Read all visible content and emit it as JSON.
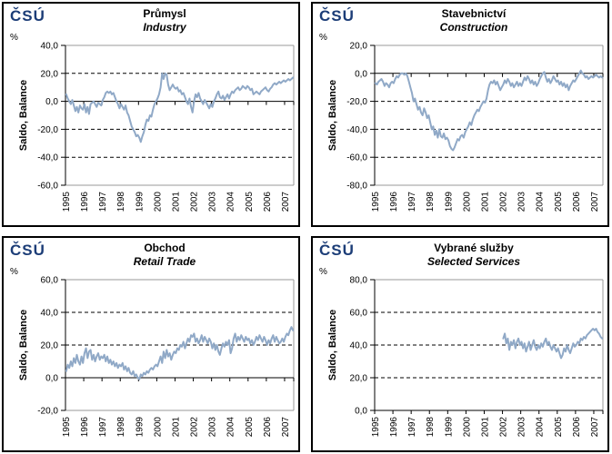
{
  "logo_text": "ČSÚ",
  "colors": {
    "line": "#90A9C7",
    "logo": "#1C3D77",
    "axis": "#000000",
    "frame": "#999999",
    "grid": "#000000"
  },
  "chart_data": [
    {
      "type": "line",
      "id": "industry",
      "title_cz": "Průmysl",
      "title_en": "Industry",
      "percent_label": "%",
      "ylabel": "Saldo, Balance",
      "ylim": [
        -60,
        40
      ],
      "ytick_values": [
        40,
        20,
        0,
        -20,
        -40,
        -60
      ],
      "ytick_labels": [
        "40,0",
        "20,0",
        "0,0",
        "-20,0",
        "-40,0",
        "-60,0"
      ],
      "zero_cross": 0,
      "grid": "horizontal dashed, solid zero axis",
      "legend": "none",
      "x_tick_labels": [
        "1995",
        "1996",
        "1997",
        "1998",
        "1999",
        "2000",
        "2001",
        "2002",
        "2003",
        "2004",
        "2005",
        "2006",
        "2007"
      ],
      "x_months_total": 150,
      "series": [
        {
          "name": "Saldo, Balance",
          "start_month_index": 0,
          "monthly_values": [
            5,
            2,
            0,
            -2,
            1,
            -3,
            -7,
            -4,
            -8,
            -3,
            -5,
            -6,
            -2,
            -8,
            -4,
            -9,
            -2,
            -1,
            0,
            -2,
            -4,
            -1,
            -2,
            -3,
            1,
            3,
            6,
            7,
            6,
            7,
            5,
            6,
            3,
            0,
            -2,
            -5,
            -2,
            -4,
            -6,
            -3,
            -8,
            -10,
            -14,
            -18,
            -20,
            -22,
            -25,
            -24,
            -26,
            -29,
            -25,
            -22,
            -17,
            -13,
            -14,
            -10,
            -11,
            -6,
            -2,
            0,
            2,
            5,
            10,
            20,
            16,
            20,
            19,
            12,
            8,
            10,
            12,
            10,
            9,
            10,
            7,
            8,
            5,
            6,
            3,
            0,
            -2,
            2,
            -4,
            -8,
            0,
            5,
            3,
            6,
            2,
            0,
            -2,
            1,
            -1,
            -3,
            -5,
            -2,
            -4,
            0,
            2,
            5,
            7,
            3,
            2,
            4,
            1,
            3,
            5,
            2,
            5,
            7,
            6,
            8,
            9,
            10,
            8,
            9,
            11,
            10,
            9,
            11,
            10,
            8,
            9,
            5,
            6,
            7,
            6,
            5,
            7,
            8,
            9,
            10,
            8,
            7,
            9,
            10,
            12,
            13,
            12,
            13,
            14,
            13,
            14,
            15,
            14,
            15,
            16,
            15,
            16,
            17
          ]
        }
      ]
    },
    {
      "type": "line",
      "id": "construction",
      "title_cz": "Stavebnictví",
      "title_en": "Construction",
      "percent_label": "%",
      "ylabel": "Saldo, Balance",
      "ylim": [
        -80,
        20
      ],
      "ytick_values": [
        20,
        0,
        -20,
        -40,
        -60,
        -80
      ],
      "ytick_labels": [
        "20,0",
        "0,0",
        "-20,0",
        "-40,0",
        "-60,0",
        "-80,0"
      ],
      "zero_cross": 0,
      "grid": "horizontal dashed, solid zero axis",
      "legend": "none",
      "x_tick_labels": [
        "1995",
        "1996",
        "1997",
        "1998",
        "1999",
        "2000",
        "2001",
        "2002",
        "2003",
        "2004",
        "2005",
        "2006",
        "2007"
      ],
      "x_months_total": 150,
      "series": [
        {
          "name": "Saldo, Balance",
          "start_month_index": 0,
          "monthly_values": [
            -7,
            -8,
            -6,
            -5,
            -4,
            -6,
            -9,
            -7,
            -8,
            -10,
            -7,
            -6,
            -7,
            -4,
            -2,
            -3,
            -1,
            0,
            0,
            -1,
            0,
            -2,
            -6,
            -10,
            -14,
            -20,
            -18,
            -22,
            -26,
            -24,
            -28,
            -30,
            -25,
            -28,
            -32,
            -30,
            -35,
            -40,
            -38,
            -44,
            -41,
            -46,
            -40,
            -45,
            -46,
            -43,
            -47,
            -46,
            -48,
            -52,
            -54,
            -55,
            -53,
            -50,
            -47,
            -48,
            -45,
            -44,
            -46,
            -42,
            -40,
            -38,
            -35,
            -37,
            -33,
            -30,
            -28,
            -26,
            -27,
            -24,
            -22,
            -20,
            -21,
            -18,
            -12,
            -8,
            -6,
            -7,
            -5,
            -8,
            -6,
            -9,
            -12,
            -10,
            -8,
            -5,
            -7,
            -4,
            -6,
            -9,
            -7,
            -10,
            -8,
            -6,
            -9,
            -7,
            -9,
            -6,
            -3,
            -5,
            -2,
            -4,
            -7,
            -5,
            -8,
            -6,
            -9,
            -7,
            -4,
            -2,
            0,
            1,
            -3,
            -6,
            -4,
            -7,
            -5,
            -2,
            -4,
            -6,
            -5,
            -8,
            -6,
            -9,
            -7,
            -10,
            -8,
            -12,
            -9,
            -7,
            -5,
            -6,
            -4,
            -2,
            0,
            2,
            0,
            -1,
            -3,
            -2,
            -4,
            -3,
            -2,
            -3,
            -2,
            -1,
            -2,
            -3,
            -2,
            -3
          ]
        }
      ]
    },
    {
      "type": "line",
      "id": "retail-trade",
      "title_cz": "Obchod",
      "title_en": "Retail Trade",
      "percent_label": "%",
      "ylabel": "Saldo, Balance",
      "ylim": [
        -20,
        60
      ],
      "ytick_values": [
        60,
        40,
        20,
        0,
        -20
      ],
      "ytick_labels": [
        "60,0",
        "40,0",
        "20,0",
        "0,0",
        "-20,0"
      ],
      "zero_cross": 0,
      "grid": "horizontal dashed, solid zero axis",
      "legend": "none",
      "x_tick_labels": [
        "1995",
        "1996",
        "1997",
        "1998",
        "1999",
        "2000",
        "2001",
        "2002",
        "2003",
        "2004",
        "2005",
        "2006",
        "2007"
      ],
      "x_months_total": 150,
      "series": [
        {
          "name": "Saldo, Balance",
          "start_month_index": 0,
          "monthly_values": [
            4,
            8,
            6,
            10,
            7,
            12,
            9,
            14,
            10,
            8,
            13,
            9,
            15,
            18,
            12,
            16,
            17,
            11,
            14,
            10,
            13,
            15,
            11,
            13,
            12,
            14,
            10,
            13,
            9,
            11,
            8,
            10,
            7,
            9,
            6,
            8,
            7,
            9,
            5,
            7,
            4,
            6,
            3,
            2,
            4,
            1,
            2,
            0,
            -1,
            2,
            1,
            3,
            2,
            4,
            3,
            5,
            6,
            5,
            7,
            8,
            7,
            10,
            13,
            9,
            16,
            12,
            17,
            13,
            15,
            11,
            14,
            16,
            15,
            18,
            17,
            20,
            19,
            22,
            18,
            21,
            24,
            22,
            26,
            25,
            27,
            22,
            24,
            21,
            23,
            26,
            22,
            25,
            23,
            21,
            24,
            22,
            18,
            21,
            17,
            20,
            16,
            14,
            18,
            21,
            19,
            22,
            20,
            23,
            15,
            18,
            24,
            27,
            22,
            25,
            23,
            26,
            24,
            22,
            25,
            23,
            24,
            21,
            23,
            20,
            22,
            25,
            23,
            26,
            24,
            22,
            25,
            23,
            20,
            23,
            21,
            24,
            26,
            22,
            25,
            23,
            21,
            22,
            24,
            22,
            25,
            27,
            26,
            29,
            31,
            29
          ]
        }
      ]
    },
    {
      "type": "line",
      "id": "selected-services",
      "title_cz": "Vybrané služby",
      "title_en": "Selected Services",
      "percent_label": "%",
      "ylabel": "Saldo, Balance",
      "ylim": [
        0,
        80
      ],
      "ytick_values": [
        80,
        60,
        40,
        20,
        0
      ],
      "ytick_labels": [
        "80,0",
        "60,0",
        "40,0",
        "20,0",
        "0,0"
      ],
      "zero_cross": 0,
      "grid": "horizontal dashed, solid bottom axis",
      "legend": "none",
      "x_tick_labels": [
        "1995",
        "1996",
        "1997",
        "1998",
        "1999",
        "2000",
        "2001",
        "2002",
        "2003",
        "2004",
        "2005",
        "2006",
        "2007"
      ],
      "x_months_total": 150,
      "series": [
        {
          "name": "Saldo, Balance",
          "start_month_index": 84,
          "monthly_values": [
            44,
            47,
            41,
            44,
            37,
            42,
            40,
            43,
            38,
            42,
            44,
            40,
            42,
            38,
            41,
            36,
            39,
            42,
            37,
            40,
            43,
            39,
            37,
            40,
            38,
            41,
            39,
            42,
            44,
            40,
            42,
            39,
            37,
            40,
            38,
            36,
            38,
            35,
            32,
            34,
            38,
            36,
            40,
            37,
            35,
            38,
            41,
            39,
            40,
            42,
            41,
            44,
            43,
            45,
            44,
            46,
            47,
            48,
            49,
            50,
            49,
            50,
            48,
            47,
            45,
            44
          ]
        }
      ]
    }
  ]
}
